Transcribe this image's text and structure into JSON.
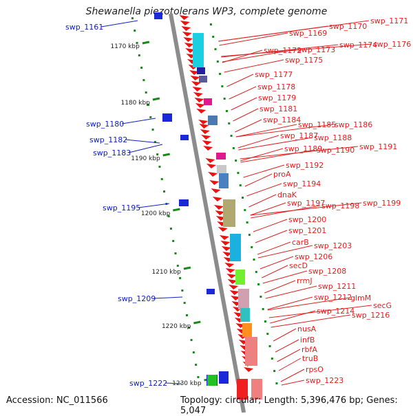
{
  "header": {
    "title": "Shewanella piezotolerans WP3, complete genome"
  },
  "footer": {
    "accession": "Accession: NC_011566",
    "topology": "Topology: circular; Length: 5,396,476 bp; Genes: 5,047"
  },
  "colors": {
    "forward_label": "#e02020",
    "reverse_label": "#1020c0",
    "backbone": "#8c8c8c",
    "tick": "#1a8a1a"
  },
  "scale": {
    "unit": "kbp",
    "ticks": [
      {
        "label": "1170 kbp",
        "kbp": 1170
      },
      {
        "label": "1180 kbp",
        "kbp": 1180
      },
      {
        "label": "1190 kbp",
        "kbp": 1190
      },
      {
        "label": "1200 kbp",
        "kbp": 1200
      },
      {
        "label": "1210 kbp",
        "kbp": 1210
      },
      {
        "label": "1220 kbp",
        "kbp": 1220
      },
      {
        "label": "1230 kbp",
        "kbp": 1230
      }
    ]
  },
  "genes": {
    "reverse_strand_labels": [
      "swp_1161",
      "swp_1180",
      "swp_1182",
      "swp_1183",
      "swp_1195",
      "swp_1209",
      "swp_1222"
    ],
    "forward_strand_labels": [
      "swp_1169",
      "swp_1170",
      "swp_1171",
      "swp_1172",
      "swp_1173",
      "swp_1174",
      "swp_1176",
      "swp_1175",
      "swp_1177",
      "swp_1178",
      "swp_1179",
      "swp_1181",
      "swp_1184",
      "swp_1185",
      "swp_1186",
      "swp_1187",
      "swp_1188",
      "swp_1189",
      "swp_1190",
      "swp_1191",
      "swp_1192",
      "proA",
      "swp_1194",
      "dnaK",
      "swp_1197",
      "swp_1198",
      "swp_1199",
      "swp_1200",
      "swp_1201",
      "carB",
      "swp_1203",
      "swp_1206",
      "secD",
      "swp_1208",
      "rrmJ",
      "swp_1211",
      "swp_1212",
      "glmM",
      "secG",
      "swp_1214",
      "swp_1216",
      "nusA",
      "infB",
      "rbfA",
      "truB",
      "rpsO",
      "swp_1223"
    ]
  }
}
